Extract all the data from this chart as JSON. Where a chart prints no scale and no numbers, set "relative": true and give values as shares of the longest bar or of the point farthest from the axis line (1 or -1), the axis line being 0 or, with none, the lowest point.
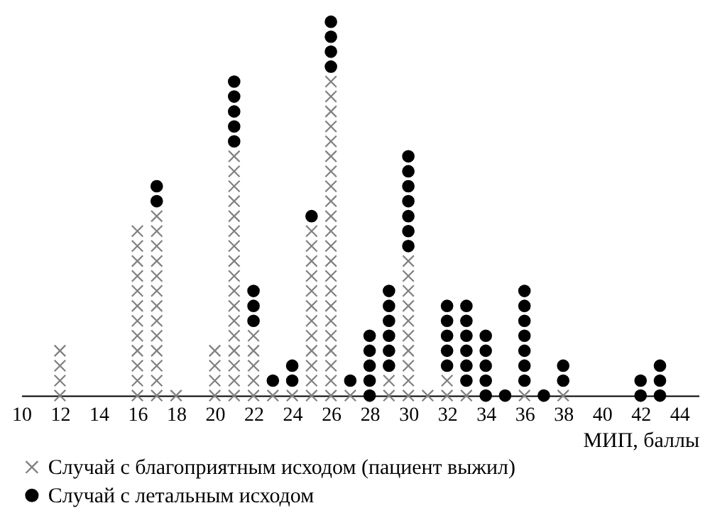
{
  "chart_data": {
    "type": "scatter",
    "relative": true,
    "xlabel": "МИП, баллы",
    "xlim": [
      10,
      45
    ],
    "xticks": [
      10,
      12,
      14,
      16,
      18,
      20,
      22,
      24,
      26,
      28,
      30,
      32,
      34,
      36,
      38,
      40,
      42,
      44
    ],
    "tick_labels": "x",
    "grid": false,
    "legend": "bottom",
    "series": [
      {
        "name": "Случай с благоприятным исходом (пациент выжил)",
        "color": "#808080",
        "marker": "cross",
        "x": [
          12,
          12,
          12,
          12,
          16,
          16,
          16,
          16,
          16,
          16,
          16,
          16,
          16,
          16,
          16,
          16,
          17,
          17,
          17,
          17,
          17,
          17,
          17,
          17,
          17,
          17,
          17,
          17,
          17,
          18,
          20,
          20,
          20,
          20,
          21,
          21,
          21,
          21,
          21,
          21,
          21,
          21,
          21,
          21,
          21,
          21,
          21,
          21,
          21,
          21,
          21,
          22,
          22,
          22,
          22,
          22,
          23,
          24,
          25,
          25,
          25,
          25,
          25,
          25,
          25,
          25,
          25,
          25,
          25,
          25,
          26,
          26,
          26,
          26,
          26,
          26,
          26,
          26,
          26,
          26,
          26,
          26,
          26,
          26,
          26,
          26,
          26,
          26,
          26,
          26,
          26,
          26,
          27,
          29,
          29,
          30,
          30,
          30,
          30,
          30,
          30,
          30,
          30,
          30,
          30,
          31,
          32,
          32,
          33,
          36,
          38
        ],
        "values": [
          0,
          0.04,
          0.08,
          0.12,
          0,
          0.04,
          0.08,
          0.12,
          0.16,
          0.2,
          0.24,
          0.28,
          0.32,
          0.36,
          0.4,
          0.44,
          0,
          0.04,
          0.08,
          0.12,
          0.16,
          0.2,
          0.24,
          0.28,
          0.32,
          0.36,
          0.4,
          0.44,
          0.48,
          0,
          0,
          0.04,
          0.08,
          0.12,
          0,
          0.04,
          0.08,
          0.12,
          0.16,
          0.2,
          0.24,
          0.28,
          0.32,
          0.36,
          0.4,
          0.44,
          0.48,
          0.52,
          0.56,
          0.6,
          0.64,
          0,
          0.04,
          0.08,
          0.12,
          0.16,
          0,
          0,
          0,
          0.04,
          0.08,
          0.12,
          0.16,
          0.2,
          0.24,
          0.28,
          0.32,
          0.36,
          0.4,
          0.44,
          0,
          0.04,
          0.08,
          0.12,
          0.16,
          0.2,
          0.24,
          0.28,
          0.32,
          0.36,
          0.4,
          0.44,
          0.48,
          0.52,
          0.56,
          0.6,
          0.64,
          0.68,
          0.72,
          0.76,
          0.8,
          0.84,
          0,
          0,
          0.04,
          0,
          0.04,
          0.08,
          0.12,
          0.16,
          0.2,
          0.24,
          0.28,
          0.32,
          0.36,
          0,
          0,
          0.04,
          0,
          0,
          0
        ]
      },
      {
        "name": "Случай с летальным исходом",
        "color": "#000000",
        "marker": "circle",
        "x": [
          17,
          17,
          21,
          21,
          21,
          21,
          21,
          22,
          22,
          22,
          23,
          24,
          24,
          25,
          26,
          26,
          26,
          26,
          27,
          28,
          28,
          28,
          28,
          28,
          29,
          29,
          29,
          29,
          29,
          29,
          30,
          30,
          30,
          30,
          30,
          30,
          30,
          32,
          32,
          32,
          32,
          32,
          33,
          33,
          33,
          33,
          33,
          33,
          34,
          34,
          34,
          34,
          34,
          35,
          36,
          36,
          36,
          36,
          36,
          36,
          36,
          37,
          38,
          38,
          42,
          42,
          43,
          43,
          43
        ],
        "values": [
          0.52,
          0.56,
          0.68,
          0.72,
          0.76,
          0.8,
          0.84,
          0.2,
          0.24,
          0.28,
          0.04,
          0.04,
          0.08,
          0.48,
          0.88,
          0.92,
          0.96,
          1,
          0.04,
          0,
          0.04,
          0.08,
          0.12,
          0.16,
          0.08,
          0.12,
          0.16,
          0.2,
          0.24,
          0.28,
          0.4,
          0.44,
          0.48,
          0.52,
          0.56,
          0.6,
          0.64,
          0.08,
          0.12,
          0.16,
          0.2,
          0.24,
          0.04,
          0.08,
          0.12,
          0.16,
          0.2,
          0.24,
          0,
          0.04,
          0.08,
          0.12,
          0.16,
          0,
          0.04,
          0.08,
          0.12,
          0.16,
          0.2,
          0.24,
          0.28,
          0,
          0.04,
          0.08,
          0,
          0.04,
          0,
          0.04,
          0.08
        ]
      }
    ]
  }
}
